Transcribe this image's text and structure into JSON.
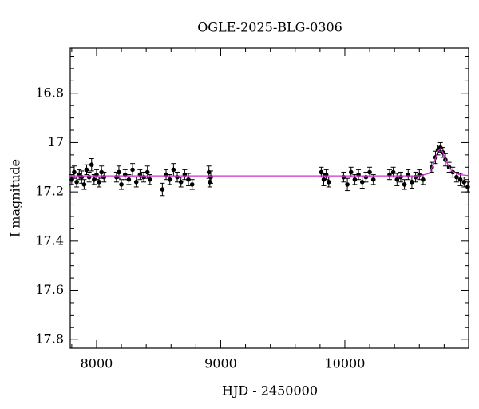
{
  "chart_data": {
    "type": "scatter",
    "title": "OGLE-2025-BLG-0306",
    "xlabel": "HJD - 2450000",
    "ylabel": "I magnitude",
    "xlim": [
      7788,
      10997
    ],
    "ylim": [
      17.835,
      16.616
    ],
    "xticks": [
      8000,
      9000,
      10000
    ],
    "yticks": [
      16.8,
      17,
      17.2,
      17.4,
      17.6,
      17.8
    ],
    "series": [
      {
        "color": "#000000",
        "x": [
          7800,
          7820,
          7840,
          7860,
          7880,
          7900,
          7920,
          7940,
          7960,
          7980,
          8000,
          8020,
          8040,
          8060,
          8160,
          8180,
          8200,
          8230,
          8260,
          8290,
          8320,
          8350,
          8380,
          8410,
          8430,
          8530,
          8560,
          8590,
          8620,
          8650,
          8680,
          8710,
          8740,
          8770,
          8905,
          8912,
          8920,
          9810,
          9830,
          9850,
          9870,
          9990,
          10020,
          10050,
          10080,
          10110,
          10140,
          10170,
          10200,
          10230,
          10360,
          10390,
          10420,
          10450,
          10480,
          10510,
          10540,
          10570,
          10600,
          10630,
          10700,
          10730,
          10750,
          10770,
          10790,
          10810,
          10840,
          10870,
          10900,
          10930,
          10960,
          10990
        ],
        "values": [
          17.15,
          17.12,
          17.16,
          17.13,
          17.14,
          17.17,
          17.11,
          17.14,
          17.09,
          17.15,
          17.13,
          17.16,
          17.12,
          17.14,
          17.14,
          17.12,
          17.17,
          17.13,
          17.15,
          17.11,
          17.16,
          17.13,
          17.14,
          17.12,
          17.15,
          17.19,
          17.13,
          17.15,
          17.11,
          17.14,
          17.16,
          17.13,
          17.15,
          17.17,
          17.12,
          17.16,
          17.14,
          17.12,
          17.15,
          17.13,
          17.16,
          17.14,
          17.17,
          17.12,
          17.15,
          17.13,
          17.16,
          17.14,
          17.12,
          17.15,
          17.13,
          17.12,
          17.15,
          17.14,
          17.17,
          17.13,
          17.16,
          17.14,
          17.13,
          17.15,
          17.1,
          17.06,
          17.03,
          17.02,
          17.04,
          17.07,
          17.1,
          17.12,
          17.14,
          17.15,
          17.16,
          17.18
        ],
        "errors": [
          0.02,
          0.025,
          0.02,
          0.02,
          0.025,
          0.02,
          0.02,
          0.02,
          0.025,
          0.02,
          0.02,
          0.02,
          0.025,
          0.02,
          0.02,
          0.025,
          0.02,
          0.02,
          0.02,
          0.025,
          0.02,
          0.02,
          0.02,
          0.025,
          0.02,
          0.025,
          0.02,
          0.02,
          0.025,
          0.02,
          0.02,
          0.02,
          0.025,
          0.02,
          0.025,
          0.02,
          0.025,
          0.02,
          0.025,
          0.02,
          0.02,
          0.02,
          0.025,
          0.02,
          0.02,
          0.02,
          0.025,
          0.02,
          0.02,
          0.02,
          0.02,
          0.02,
          0.025,
          0.02,
          0.02,
          0.02,
          0.025,
          0.02,
          0.02,
          0.02,
          0.02,
          0.025,
          0.02,
          0.02,
          0.02,
          0.025,
          0.02,
          0.02,
          0.02,
          0.025,
          0.02,
          0.02
        ]
      }
    ],
    "model": {
      "color": "#cc33cc",
      "x": [
        7788,
        10600,
        10680,
        10720,
        10750,
        10770,
        10790,
        10820,
        10860,
        10920,
        10997
      ],
      "values": [
        17.135,
        17.135,
        17.125,
        17.08,
        17.035,
        17.025,
        17.04,
        17.08,
        17.115,
        17.13,
        17.134
      ]
    }
  }
}
